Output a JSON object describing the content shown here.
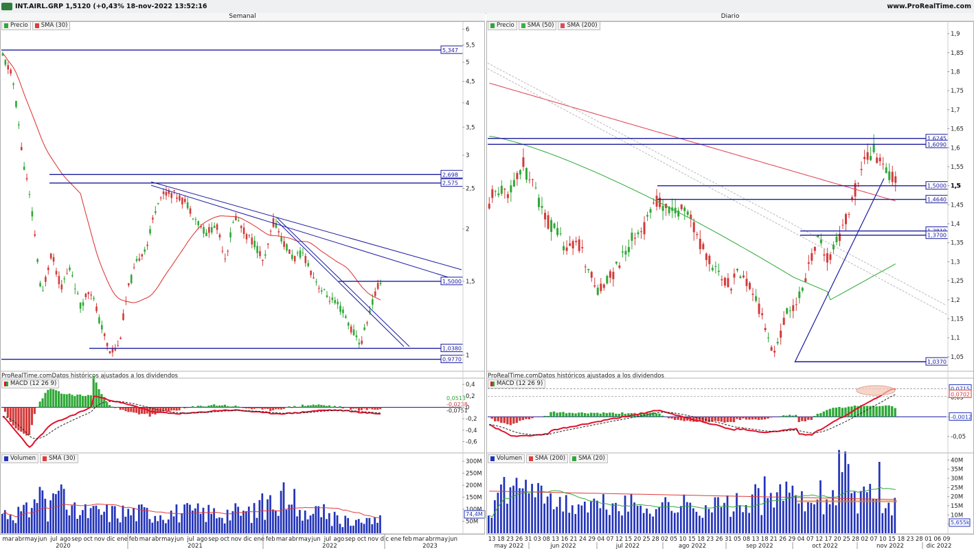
{
  "header": {
    "ticker_line": "INT.AIRL.GRP 1,5120 (+0,43% 18-nov-2022 13:52:16",
    "site": "www.ProRealTime.com"
  },
  "colors": {
    "price_up": "#2ea836",
    "price_down": "#d33a3a",
    "sma30": "#e03a3a",
    "sma50": "#3cb043",
    "sma200": "#e14a5a",
    "levels": "#1a1aa0",
    "macd_line": "#e0102a",
    "signal_line": "#222222",
    "volume": "#2233b8"
  },
  "left": {
    "title": "Semanal",
    "legend": [
      {
        "label": "Precio",
        "color": "#2ea836"
      },
      {
        "label": "SMA (30)",
        "color": "#e03a3a"
      }
    ],
    "note": "ProRealTime.comDatos históricos ajustados a los dividendos",
    "macd_legend": "MACD (12 26 9)",
    "volume_legend": [
      {
        "label": "Volumen",
        "color": "#2233b8"
      },
      {
        "label": "SMA (30)",
        "color": "#e03a3a"
      }
    ]
  },
  "right": {
    "title": "Diario",
    "legend": [
      {
        "label": "Precio",
        "color": "#2ea836"
      },
      {
        "label": "SMA (50)",
        "color": "#3cb043"
      },
      {
        "label": "SMA (200)",
        "color": "#e14a5a"
      }
    ],
    "note": "ProRealTime.comDatos históricos ajustados a los dividendos",
    "macd_legend": "MACD (12 26 9)",
    "volume_legend": [
      {
        "label": "Volumen",
        "color": "#2233b8"
      },
      {
        "label": "SMA (200)",
        "color": "#e03a3a"
      },
      {
        "label": "SMA (20)",
        "color": "#2ea836"
      }
    ]
  },
  "chart_data": [
    {
      "id": "weekly",
      "type": "candlestick",
      "title": "Semanal",
      "scale": "log",
      "ylim": [
        0.95,
        6.1
      ],
      "y_ticks": [
        "6",
        "5,5",
        "5",
        "4,5",
        "4",
        "3,5",
        "3",
        "2,5",
        "2",
        "1,5",
        "1"
      ],
      "y_tick_values": [
        6,
        5.5,
        5,
        4.5,
        4,
        3.5,
        3,
        2.5,
        2,
        1.5,
        1
      ],
      "x_labels": [
        "mar",
        "abr",
        "may",
        "jun",
        "jul",
        "ago",
        "sep",
        "oct",
        "nov",
        "dic",
        "ene",
        "feb",
        "mar",
        "abr",
        "may",
        "jun",
        "jul",
        "ago",
        "sep",
        "oct",
        "nov",
        "dic",
        "ene",
        "feb",
        "mar",
        "abr",
        "may",
        "jun",
        "jul",
        "ago",
        "sep",
        "oct",
        "nov",
        "dic",
        "ene",
        "feb",
        "mar",
        "abr",
        "may",
        "jun"
      ],
      "year_labels": [
        "2020",
        "2021",
        "2022",
        "2023"
      ],
      "close_path": [
        5.15,
        4.6,
        3.0,
        2.2,
        1.35,
        1.75,
        1.45,
        1.62,
        1.3,
        1.45,
        1.2,
        1.02,
        1.05,
        1.45,
        1.7,
        1.85,
        2.35,
        2.45,
        2.4,
        2.3,
        2.1,
        1.95,
        2.05,
        1.7,
        2.15,
        1.95,
        1.85,
        1.65,
        2.1,
        1.85,
        1.7,
        1.75,
        1.55,
        1.42,
        1.35,
        1.28,
        1.15,
        1.06,
        1.3,
        1.51
      ],
      "levels": [
        {
          "label": "5,347",
          "value": 5.347
        },
        {
          "label": "2,698",
          "value": 2.698
        },
        {
          "label": "2,575",
          "value": 2.575
        },
        {
          "label": "1,5000",
          "value": 1.5
        },
        {
          "label": "1,0380",
          "value": 1.038
        },
        {
          "label": "0,9770",
          "value": 0.977
        }
      ]
    },
    {
      "id": "weekly-macd",
      "type": "macd",
      "title": "MACD (12 26 9)",
      "y_ticks": [
        "0,4",
        "0,2",
        "0",
        "-0,2",
        "-0,4",
        "-0,6"
      ],
      "y_tick_values": [
        0.4,
        0.2,
        0,
        -0.2,
        -0.4,
        -0.6
      ],
      "ylim": [
        -0.75,
        0.45
      ],
      "value_labels": [
        "0,0513",
        "-0,0238",
        "-0,0751"
      ]
    },
    {
      "id": "weekly-volume",
      "type": "bar",
      "title": "Volumen",
      "y_ticks": [
        "300M",
        "250M",
        "200M",
        "150M",
        "100M",
        "50M"
      ],
      "y_tick_values": [
        300,
        250,
        200,
        150,
        100,
        50
      ],
      "ylim": [
        0,
        320
      ],
      "value_labels": [
        "74,4M"
      ]
    },
    {
      "id": "daily",
      "type": "candlestick",
      "title": "Diario",
      "ylim": [
        1.03,
        1.92
      ],
      "y_ticks": [
        "1,9",
        "1,85",
        "1,8",
        "1,75",
        "1,7",
        "1,65",
        "1,6",
        "1,55",
        "1,5",
        "1,45",
        "1,4",
        "1,35",
        "1,3",
        "1,25",
        "1,2",
        "1,15",
        "1,1",
        "1,05"
      ],
      "y_tick_values": [
        1.9,
        1.85,
        1.8,
        1.75,
        1.7,
        1.65,
        1.6,
        1.55,
        1.5,
        1.45,
        1.4,
        1.35,
        1.3,
        1.25,
        1.2,
        1.15,
        1.1,
        1.05
      ],
      "x_labels": [
        "13",
        "18",
        "23",
        "26",
        "31",
        "03",
        "08",
        "13",
        "16",
        "21",
        "24",
        "29",
        "04",
        "07",
        "12",
        "15",
        "20",
        "25",
        "28",
        "02",
        "05",
        "10",
        "15",
        "18",
        "23",
        "26",
        "31",
        "05",
        "08",
        "13",
        "18",
        "21",
        "26",
        "29",
        "04",
        "07",
        "12",
        "17",
        "20",
        "25",
        "28",
        "02",
        "07",
        "10",
        "15",
        "18",
        "23",
        "28",
        "01",
        "06",
        "09"
      ],
      "month_labels": [
        "may 2022",
        "jun 2022",
        "jul 2022",
        "ago 2022",
        "sep 2022",
        "oct 2022",
        "nov 2022",
        "dic 2022"
      ],
      "close_path": [
        1.46,
        1.5,
        1.48,
        1.56,
        1.5,
        1.42,
        1.38,
        1.34,
        1.36,
        1.28,
        1.22,
        1.26,
        1.3,
        1.36,
        1.38,
        1.47,
        1.44,
        1.43,
        1.45,
        1.36,
        1.3,
        1.26,
        1.24,
        1.28,
        1.22,
        1.14,
        1.05,
        1.16,
        1.19,
        1.28,
        1.36,
        1.3,
        1.38,
        1.46,
        1.55,
        1.6,
        1.54,
        1.51
      ],
      "levels": [
        {
          "label": "1,6245",
          "value": 1.6245
        },
        {
          "label": "1,6090",
          "value": 1.609
        },
        {
          "label": "1,5000",
          "value": 1.5
        },
        {
          "label": "1,4640",
          "value": 1.464
        },
        {
          "label": "1,3810",
          "value": 1.381
        },
        {
          "label": "1,3700",
          "value": 1.37
        },
        {
          "label": "1,0370",
          "value": 1.037
        }
      ],
      "current_price_label": "1,5"
    },
    {
      "id": "daily-macd",
      "type": "macd",
      "title": "MACD (12 26 9)",
      "y_ticks": [
        "0,05",
        "0",
        "-0,05"
      ],
      "y_tick_values": [
        0.05,
        0,
        -0.05
      ],
      "ylim": [
        -0.085,
        0.09
      ],
      "value_labels": [
        "0,0715",
        "0,0702",
        "-0,0012"
      ]
    },
    {
      "id": "daily-volume",
      "type": "bar",
      "title": "Volumen",
      "y_ticks": [
        "40M",
        "35M",
        "30M",
        "25M",
        "20M",
        "15M",
        "10M",
        "5M"
      ],
      "y_tick_values": [
        40,
        35,
        30,
        25,
        20,
        15,
        10,
        5
      ],
      "ylim": [
        0,
        42
      ],
      "value_labels": [
        "5,655k"
      ]
    }
  ]
}
